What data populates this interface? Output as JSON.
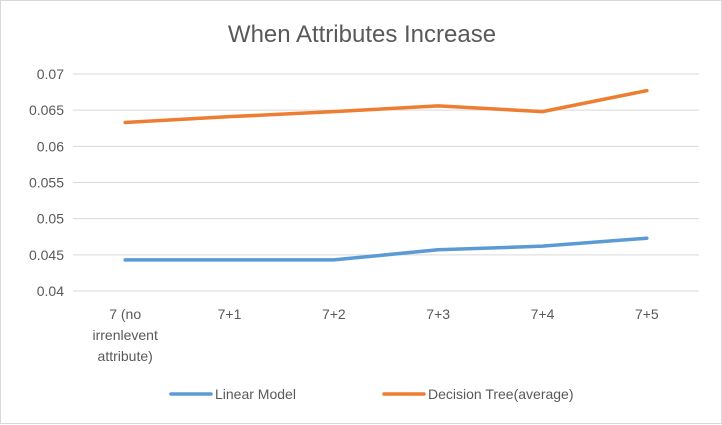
{
  "chart_data": {
    "type": "line",
    "title": "When Attributes Increase",
    "xlabel": "",
    "ylabel": "",
    "categories": [
      [
        "7 (no",
        "irrenlevent",
        "attribute)"
      ],
      [
        "7+1"
      ],
      [
        "7+2"
      ],
      [
        "7+3"
      ],
      [
        "7+4"
      ],
      [
        "7+5"
      ]
    ],
    "ylim": [
      0.04,
      0.07
    ],
    "yticks": [
      "0.04",
      "0.045",
      "0.05",
      "0.055",
      "0.06",
      "0.065",
      "0.07"
    ],
    "grid": true,
    "legend_position": "bottom",
    "series": [
      {
        "name": "Linear Model",
        "color": "#5b9bd5",
        "values": [
          0.0443,
          0.0443,
          0.0443,
          0.0457,
          0.0462,
          0.0473
        ]
      },
      {
        "name": "Decision Tree(average)",
        "color": "#ed7d31",
        "values": [
          0.0633,
          0.0641,
          0.0648,
          0.0656,
          0.0648,
          0.0677
        ]
      }
    ]
  }
}
